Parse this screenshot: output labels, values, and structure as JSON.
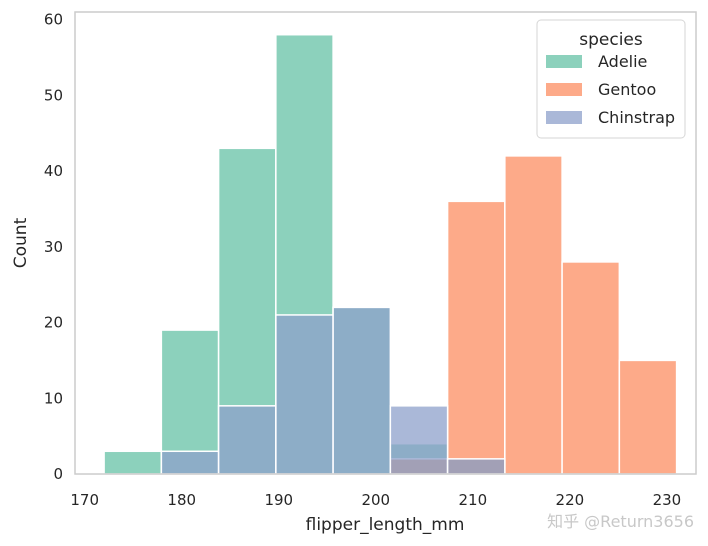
{
  "chart_data": {
    "type": "bar",
    "subtype": "histogram (overlaid, semi-transparent)",
    "xlabel": "flipper_length_mm",
    "ylabel": "Count",
    "xlim": [
      169,
      233
    ],
    "ylim": [
      0,
      61
    ],
    "xticks": [
      170,
      180,
      190,
      200,
      210,
      220,
      230
    ],
    "yticks": [
      0,
      10,
      20,
      30,
      40,
      50,
      60
    ],
    "grid": false,
    "legend": {
      "title": "species",
      "placement": "top-right"
    },
    "bin_edges": [
      172,
      177.9,
      183.8,
      189.7,
      195.6,
      201.5,
      207.4,
      213.3,
      219.2,
      225.1,
      231
    ],
    "series": [
      {
        "name": "Adelie",
        "color": "#66c2a5",
        "values": [
          3,
          19,
          43,
          58,
          22,
          4,
          2,
          0,
          0,
          0
        ]
      },
      {
        "name": "Gentoo",
        "color": "#fc8d62",
        "values": [
          0,
          0,
          0,
          0,
          0,
          2,
          36,
          42,
          28,
          15
        ]
      },
      {
        "name": "Chinstrap",
        "color": "#8da0cb",
        "values": [
          0,
          3,
          9,
          21,
          22,
          9,
          2,
          0,
          0,
          0
        ]
      }
    ]
  },
  "watermark": "知乎 @Return3656"
}
